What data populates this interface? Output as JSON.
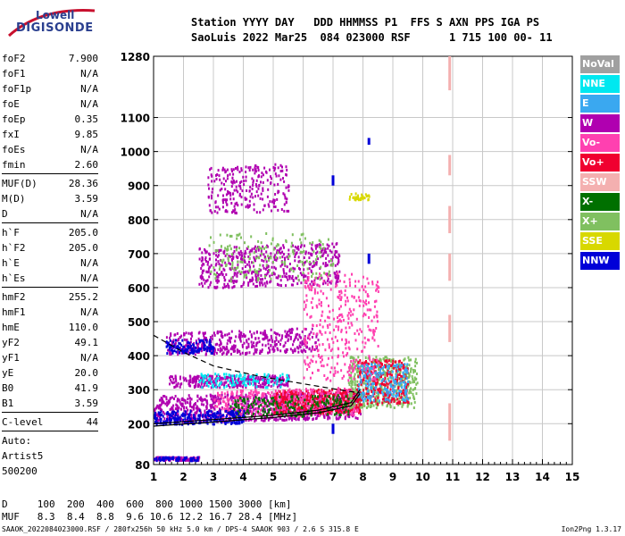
{
  "logo": {
    "line1": "Lowell",
    "line2": "DIGISONDE"
  },
  "header": {
    "line1": "Station YYYY DAY   DDD HHMMSS P1  FFS S AXN PPS IGA PS",
    "line2": "SaoLuis 2022 Mar25  084 023000 RSF      1 715 100 00- 11"
  },
  "params": [
    {
      "label": "foF2",
      "value": "7.900"
    },
    {
      "label": "foF1",
      "value": "N/A"
    },
    {
      "label": "foF1p",
      "value": "N/A"
    },
    {
      "label": "foE",
      "value": "N/A"
    },
    {
      "label": "foEp",
      "value": "0.35"
    },
    {
      "label": "fxI",
      "value": "9.85"
    },
    {
      "label": "foEs",
      "value": "N/A"
    },
    {
      "label": "fmin",
      "value": "2.60"
    }
  ],
  "params2": [
    {
      "label": "MUF(D)",
      "value": "28.36"
    },
    {
      "label": "M(D)",
      "value": "3.59"
    },
    {
      "label": "D",
      "value": "N/A"
    }
  ],
  "params3": [
    {
      "label": "h`F",
      "value": "205.0"
    },
    {
      "label": "h`F2",
      "value": "205.0"
    },
    {
      "label": "h`E",
      "value": "N/A"
    },
    {
      "label": "h`Es",
      "value": "N/A"
    }
  ],
  "params4": [
    {
      "label": "hmF2",
      "value": "255.2"
    },
    {
      "label": "hmF1",
      "value": "N/A"
    },
    {
      "label": "hmE",
      "value": "110.0"
    },
    {
      "label": "yF2",
      "value": "49.1"
    },
    {
      "label": "yF1",
      "value": "N/A"
    },
    {
      "label": "yE",
      "value": "20.0"
    },
    {
      "label": "B0",
      "value": "41.9"
    },
    {
      "label": "B1",
      "value": "3.59"
    }
  ],
  "clevel": {
    "label": "C-level",
    "value": "44"
  },
  "auto": {
    "line1": "Auto:",
    "line2": "Artist5",
    "line3": "500200"
  },
  "legend": [
    {
      "label": "NoVal",
      "color": "#a0a0a0"
    },
    {
      "label": "NNE",
      "color": "#00e8f0"
    },
    {
      "label": "E",
      "color": "#3aa8f0"
    },
    {
      "label": "W",
      "color": "#b000b0"
    },
    {
      "label": "Vo-",
      "color": "#ff40b0"
    },
    {
      "label": "Vo+",
      "color": "#f00030"
    },
    {
      "label": "SSW",
      "color": "#f4b0b0"
    },
    {
      "label": "X-",
      "color": "#007000"
    },
    {
      "label": "X+",
      "color": "#80c060"
    },
    {
      "label": "SSE",
      "color": "#d8d800"
    },
    {
      "label": "NNW",
      "color": "#0000d8"
    }
  ],
  "footer": {
    "line1": "D     100  200  400  600  800 1000 1500 3000 [km]",
    "line2": "MUF   8.3  8.4  8.8  9.6 10.6 12.2 16.7 28.4 [MHz]",
    "line3": "SAAOK_2022084023000.RSF / 280fx256h 50 kHz 5.0 km / DPS-4 SAAOK 903 / 2.6 S 315.8 E",
    "version": "Ion2Png 1.3.17"
  },
  "chart_data": {
    "type": "scatter",
    "title": "",
    "xlabel": "",
    "ylabel": "",
    "xlim": [
      1,
      15
    ],
    "ylim": [
      80,
      1280
    ],
    "x_ticks": [
      1,
      2,
      3,
      4,
      5,
      6,
      7,
      8,
      9,
      10,
      11,
      12,
      13,
      14,
      15
    ],
    "y_ticks": [
      80,
      200,
      300,
      400,
      500,
      600,
      700,
      800,
      900,
      1000,
      1100,
      1280
    ],
    "grid": true,
    "legend_position": "right",
    "traces": [
      {
        "name": "O-trace profile",
        "points": [
          [
            1.0,
            200
          ],
          [
            3.0,
            212
          ],
          [
            5.0,
            225
          ],
          [
            6.5,
            240
          ],
          [
            7.6,
            262
          ],
          [
            7.9,
            300
          ]
        ]
      },
      {
        "name": "X-trace profile",
        "points": [
          [
            1.0,
            193
          ],
          [
            3.0,
            205
          ],
          [
            5.0,
            218
          ],
          [
            6.5,
            232
          ],
          [
            7.6,
            252
          ],
          [
            7.9,
            288
          ]
        ]
      },
      {
        "name": "profile extension",
        "points": [
          [
            1.0,
            460
          ],
          [
            2.0,
            410
          ],
          [
            3.0,
            370
          ],
          [
            4.5,
            340
          ],
          [
            6.5,
            310
          ],
          [
            7.9,
            290
          ]
        ]
      }
    ],
    "clusters": [
      {
        "color": "#b000b0",
        "x": [
          1.0,
          7.9
        ],
        "h": [
          205,
          285
        ],
        "n": 900,
        "tilt": 0.02
      },
      {
        "color": "#f00030",
        "x": [
          5.0,
          7.9
        ],
        "h": [
          230,
          300
        ],
        "n": 450,
        "tilt": 0.02
      },
      {
        "color": "#ff40b0",
        "x": [
          3.0,
          7.8
        ],
        "h": [
          220,
          300
        ],
        "n": 350,
        "tilt": 0.02
      },
      {
        "color": "#007000",
        "x": [
          3.5,
          7.5
        ],
        "h": [
          220,
          280
        ],
        "n": 200,
        "tilt": 0.02
      },
      {
        "color": "#0000d8",
        "x": [
          1.0,
          4.0
        ],
        "h": [
          200,
          240
        ],
        "n": 250,
        "tilt": 0.01
      },
      {
        "color": "#80c060",
        "x": [
          7.5,
          9.8
        ],
        "h": [
          250,
          400
        ],
        "n": 420,
        "tilt": 0.0
      },
      {
        "color": "#f00030",
        "x": [
          7.8,
          9.5
        ],
        "h": [
          260,
          390
        ],
        "n": 300,
        "tilt": 0.0
      },
      {
        "color": "#3aa8f0",
        "x": [
          7.8,
          9.5
        ],
        "h": [
          270,
          380
        ],
        "n": 200,
        "tilt": 0.0
      },
      {
        "color": "#b000b0",
        "x": [
          1.4,
          6.5
        ],
        "h": [
          400,
          470
        ],
        "n": 420,
        "tilt": 0.03
      },
      {
        "color": "#0000d8",
        "x": [
          1.4,
          3.0
        ],
        "h": [
          410,
          450
        ],
        "n": 120,
        "tilt": 0.0
      },
      {
        "color": "#b000b0",
        "x": [
          1.5,
          5.5
        ],
        "h": [
          310,
          345
        ],
        "n": 300,
        "tilt": 0.0
      },
      {
        "color": "#00e8f0",
        "x": [
          2.5,
          5.5
        ],
        "h": [
          310,
          350
        ],
        "n": 120,
        "tilt": 0.0
      },
      {
        "color": "#b000b0",
        "x": [
          2.5,
          7.2
        ],
        "h": [
          600,
          720
        ],
        "n": 520,
        "tilt": 0.03
      },
      {
        "color": "#ff40b0",
        "x": [
          6.0,
          8.5
        ],
        "h": [
          330,
          650
        ],
        "n": 350,
        "tilt": 0.0
      },
      {
        "color": "#80c060",
        "x": [
          2.8,
          7.0
        ],
        "h": [
          620,
          760
        ],
        "n": 180,
        "tilt": 0.02
      },
      {
        "color": "#b000b0",
        "x": [
          2.8,
          5.5
        ],
        "h": [
          820,
          960
        ],
        "n": 260,
        "tilt": 0.03
      },
      {
        "color": "#b000b0",
        "x": [
          1.0,
          2.5
        ],
        "h": [
          95,
          105
        ],
        "n": 120,
        "tilt": 0.0
      },
      {
        "color": "#0000d8",
        "x": [
          1.0,
          2.5
        ],
        "h": [
          95,
          105
        ],
        "n": 60,
        "tilt": 0.0
      },
      {
        "color": "#d8d800",
        "x": [
          7.5,
          8.2
        ],
        "h": [
          860,
          880
        ],
        "n": 30,
        "tilt": 0.0
      }
    ],
    "vertical_marks": [
      {
        "x": 10.9,
        "h": [
          1180,
          1280
        ],
        "color": "#f4b0b0"
      },
      {
        "x": 10.9,
        "h": [
          930,
          990
        ],
        "color": "#f4b0b0"
      },
      {
        "x": 10.9,
        "h": [
          760,
          840
        ],
        "color": "#f4b0b0"
      },
      {
        "x": 10.9,
        "h": [
          620,
          700
        ],
        "color": "#f4b0b0"
      },
      {
        "x": 10.9,
        "h": [
          440,
          520
        ],
        "color": "#f4b0b0"
      },
      {
        "x": 10.9,
        "h": [
          150,
          260
        ],
        "color": "#f4b0b0"
      },
      {
        "x": 7.0,
        "h": [
          900,
          930
        ],
        "color": "#0000d8"
      },
      {
        "x": 8.2,
        "h": [
          1020,
          1040
        ],
        "color": "#0000d8"
      },
      {
        "x": 8.2,
        "h": [
          670,
          700
        ],
        "color": "#0000d8"
      },
      {
        "x": 7.0,
        "h": [
          170,
          200
        ],
        "color": "#0000d8"
      }
    ]
  }
}
